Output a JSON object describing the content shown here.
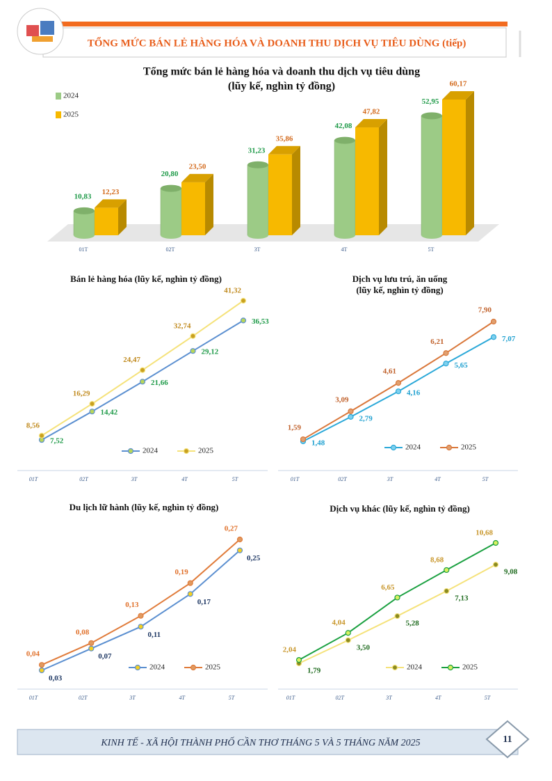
{
  "header": {
    "title": "TỔNG MỨC BÁN LẺ HÀNG HÓA VÀ DOANH THU DỊCH VỤ TIÊU DÙNG (tiếp)"
  },
  "chart_data": [
    {
      "type": "bar3d",
      "title": "Tổng mức bán lẻ hàng hóa và doanh thu dịch vụ tiêu dùng",
      "subtitle": "(lũy kế, nghìn tỷ đồng)",
      "categories": [
        "01T",
        "02T",
        "3T",
        "4T",
        "5T"
      ],
      "series": [
        {
          "name": "2024",
          "color": "#9ccb86",
          "label_color": "#1e9a48",
          "values": [
            10.83,
            20.8,
            31.23,
            42.08,
            52.95
          ],
          "value_labels": [
            "10,83",
            "20,80",
            "31,23",
            "42,08",
            "52,95"
          ]
        },
        {
          "name": "2025",
          "color": "#f7b900",
          "label_color": "#d36a1c",
          "values": [
            12.23,
            23.5,
            35.86,
            47.82,
            60.17
          ],
          "value_labels": [
            "12,23",
            "23,50",
            "35,86",
            "47,82",
            "60,17"
          ]
        }
      ]
    },
    {
      "type": "line",
      "title": "Bán lẻ hàng hóa (lũy kế, nghìn tỷ đồng)",
      "categories": [
        "01T",
        "02T",
        "3T",
        "4T",
        "5T"
      ],
      "series": [
        {
          "name": "2024",
          "color": "#5b8fd0",
          "marker_color": "#b8d65a",
          "label_color": "#1e9a48",
          "values": [
            7.52,
            14.42,
            21.66,
            29.12,
            36.53
          ],
          "value_labels": [
            "7,52",
            "14,42",
            "21,66",
            "29,12",
            "36,53"
          ]
        },
        {
          "name": "2025",
          "color": "#f5e27a",
          "marker_color": "#c8a020",
          "label_color": "#c08a1e",
          "values": [
            8.56,
            16.29,
            24.47,
            32.74,
            41.32
          ],
          "value_labels": [
            "8,56",
            "16,29",
            "24,47",
            "32,74",
            "41,32"
          ]
        }
      ]
    },
    {
      "type": "line",
      "title": "Dịch vụ lưu trú, ăn uống",
      "subtitle": "(lũy kế, nghìn tỷ đồng)",
      "categories": [
        "01T",
        "02T",
        "3T",
        "4T",
        "5T"
      ],
      "series": [
        {
          "name": "2024",
          "color": "#2aa8d8",
          "marker_color": "#7fd0ee",
          "label_color": "#1ea0d0",
          "values": [
            1.48,
            2.79,
            4.16,
            5.65,
            7.07
          ],
          "value_labels": [
            "1,48",
            "2,79",
            "4,16",
            "5,65",
            "7,07"
          ]
        },
        {
          "name": "2025",
          "color": "#d9773a",
          "marker_color": "#e0a070",
          "label_color": "#c0602a",
          "values": [
            1.59,
            3.09,
            4.61,
            6.21,
            7.9
          ],
          "value_labels": [
            "1,59",
            "3,09",
            "4,61",
            "6,21",
            "7,90"
          ]
        }
      ]
    },
    {
      "type": "line",
      "title": "Du lịch lữ hành (lũy kế, nghìn tỷ đồng)",
      "categories": [
        "01T",
        "02T",
        "3T",
        "4T",
        "5T"
      ],
      "series": [
        {
          "name": "2024",
          "color": "#5b8fd0",
          "marker_color": "#f5d020",
          "label_color": "#1f3864",
          "values": [
            0.03,
            0.07,
            0.11,
            0.17,
            0.25
          ],
          "value_labels": [
            "0,03",
            "0,07",
            "0,11",
            "0,17",
            "0,25"
          ]
        },
        {
          "name": "2025",
          "color": "#e07b3a",
          "marker_color": "#e09a60",
          "label_color": "#e0702a",
          "values": [
            0.04,
            0.08,
            0.13,
            0.19,
            0.27
          ],
          "value_labels": [
            "0,04",
            "0,08",
            "0,13",
            "0,19",
            "0,27"
          ]
        }
      ]
    },
    {
      "type": "line",
      "title": "Dịch vụ  khác (lũy kế, nghìn tỷ đồng)",
      "categories": [
        "01T",
        "02T",
        "3T",
        "4T",
        "5T"
      ],
      "series": [
        {
          "name": "2024",
          "color": "#f5e27a",
          "marker_color": "#8a8a20",
          "label_color": "#1f6b1f",
          "values": [
            1.79,
            3.5,
            5.28,
            7.13,
            9.08
          ],
          "value_labels": [
            "1,79",
            "3,50",
            "5,28",
            "7,13",
            "9,08"
          ]
        },
        {
          "name": "2025",
          "color": "#1aa040",
          "marker_color": "#d8f060",
          "label_color": "#c8962a",
          "values": [
            2.04,
            4.04,
            6.65,
            8.68,
            10.68
          ],
          "value_labels": [
            "2,04",
            "4,04",
            "6,65",
            "8,68",
            "10,68"
          ]
        }
      ]
    }
  ],
  "footer": {
    "text": "KINH TẾ - XÃ HỘI THÀNH PHỐ CẦN THƠ THÁNG 5 VÀ 5 THÁNG NĂM 2025",
    "page": "11"
  }
}
